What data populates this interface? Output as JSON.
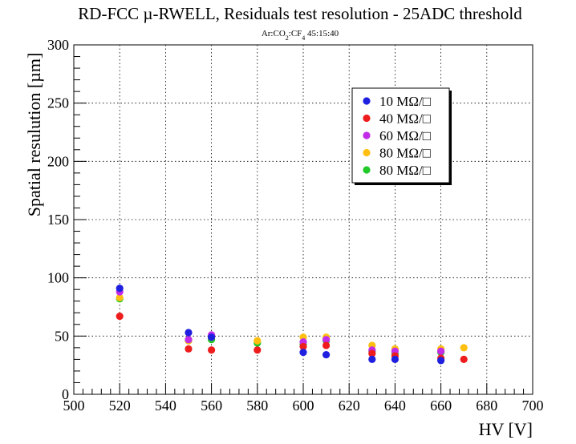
{
  "chart_data": {
    "type": "scatter",
    "title": "RD-FCC µ-RWELL, Residuals test resolution - 25ADC threshold",
    "subtitle": {
      "text": "Ar:CO",
      "sub1": "2",
      "mid": ":CF",
      "sub2": "4",
      "tail": " 45:15:40"
    },
    "xlabel": "HV [V]",
    "ylabel": "Spatial resulution [µm]",
    "xlim": [
      500,
      700
    ],
    "ylim": [
      0,
      300
    ],
    "xticks": [
      500,
      520,
      540,
      560,
      580,
      600,
      620,
      640,
      660,
      680,
      700
    ],
    "yticks": [
      0,
      50,
      100,
      150,
      200,
      250,
      300
    ],
    "grid": true,
    "legend_position": "top-right",
    "series": [
      {
        "name": "10 MΩ/□",
        "color": "#1f1fe0",
        "x": [
          520,
          550,
          560,
          600,
          610,
          630,
          640,
          660
        ],
        "y": [
          91,
          53,
          49,
          36,
          34,
          30,
          30,
          29
        ]
      },
      {
        "name": "40 MΩ/□",
        "color": "#ee1c1c",
        "x": [
          520,
          550,
          560,
          580,
          600,
          610,
          630,
          640,
          660,
          670
        ],
        "y": [
          67,
          39,
          38,
          38,
          41,
          42,
          35,
          33,
          31,
          30
        ]
      },
      {
        "name": "60 MΩ/□",
        "color": "#c02ce8",
        "x": [
          520,
          550,
          560,
          600,
          610,
          630,
          640,
          660
        ],
        "y": [
          88,
          47,
          51,
          45,
          47,
          38,
          37,
          37
        ]
      },
      {
        "name": "80 MΩ/□",
        "color": "#ffbf10",
        "x": [
          520,
          550,
          560,
          580,
          600,
          610,
          630,
          640,
          660,
          670
        ],
        "y": [
          83,
          46,
          49,
          46,
          49,
          49,
          42,
          39,
          39,
          40
        ]
      },
      {
        "name": "80 MΩ/□",
        "color": "#22c92a",
        "x": [
          520,
          550,
          560,
          580,
          600,
          610,
          630,
          640,
          660
        ],
        "y": [
          82,
          46,
          47,
          44,
          43,
          46,
          37,
          35,
          36
        ]
      }
    ]
  }
}
